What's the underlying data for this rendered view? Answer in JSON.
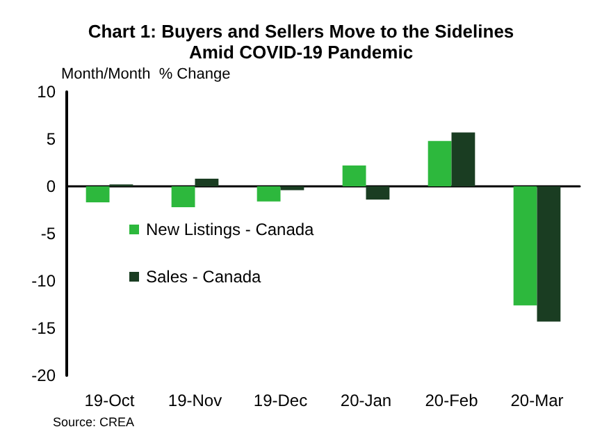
{
  "chart_data": {
    "type": "bar",
    "title": "Chart 1: Buyers and Sellers Move to the Sidelines\nAmid COVID-19 Pandemic",
    "ylabel": "Month/Month  % Change",
    "categories": [
      "19-Oct",
      "19-Nov",
      "19-Dec",
      "20-Jan",
      "20-Feb",
      "20-Mar"
    ],
    "series": [
      {
        "name": "New Listings - Canada",
        "color": "#2db83d",
        "values": [
          -1.7,
          -2.2,
          -1.6,
          2.2,
          4.8,
          -12.6
        ]
      },
      {
        "name": "Sales - Canada",
        "color": "#1a3d22",
        "values": [
          0.2,
          0.8,
          -0.4,
          -1.4,
          5.7,
          -14.3
        ]
      }
    ],
    "ylim": [
      -20,
      10
    ],
    "yticks": [
      -20,
      -15,
      -10,
      -5,
      0,
      5,
      10
    ],
    "legend": "left",
    "annotations": [
      "Source: CREA"
    ]
  }
}
